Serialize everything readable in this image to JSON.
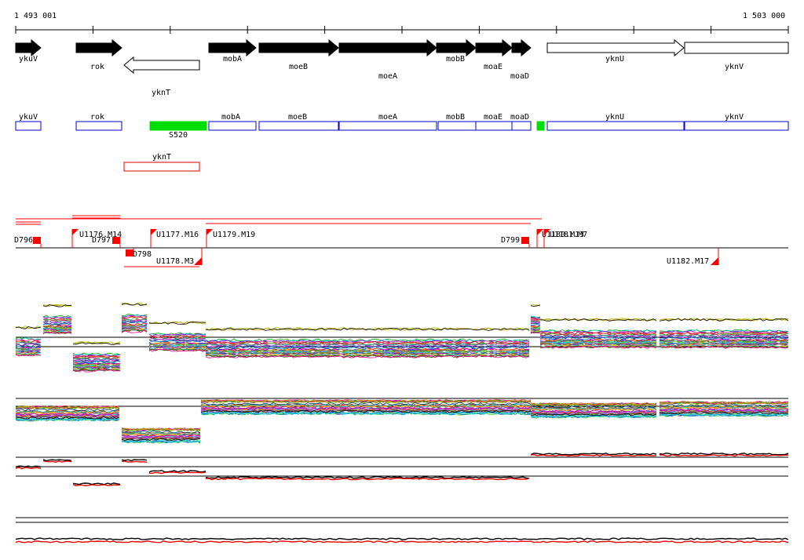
{
  "coordinates": {
    "start_label": "1 493 001",
    "end_label": "1 503 000"
  },
  "colors": {
    "gene_fill": "#000000",
    "gene_outline": "#000000",
    "box_blue": "#0000cc",
    "box_red": "#dd0000",
    "box_green": "#00dd00",
    "marker_red": "#ff0000",
    "axis": "#000000"
  },
  "gene_track": {
    "genes": [
      {
        "name": "ykuV",
        "strand": "+",
        "filled": true
      },
      {
        "name": "rok",
        "strand": "+",
        "filled": true
      },
      {
        "name": "yknT",
        "strand": "-",
        "filled": false
      },
      {
        "name": "mobA",
        "strand": "+",
        "filled": true
      },
      {
        "name": "moeB",
        "strand": "+",
        "filled": true
      },
      {
        "name": "moeA",
        "strand": "+",
        "filled": true
      },
      {
        "name": "mobB",
        "strand": "+",
        "filled": true
      },
      {
        "name": "moaE",
        "strand": "+",
        "filled": true
      },
      {
        "name": "moaD",
        "strand": "+",
        "filled": true
      },
      {
        "name": "yknU",
        "strand": "+",
        "filled": false
      },
      {
        "name": "yknV",
        "strand": "+",
        "filled": false
      }
    ]
  },
  "annotation_track": {
    "boxes": [
      {
        "label": "ykuV",
        "color": "blue"
      },
      {
        "label": "rok",
        "color": "blue"
      },
      {
        "label": "S520",
        "color": "green"
      },
      {
        "label": "mobA",
        "color": "blue"
      },
      {
        "label": "moeB",
        "color": "blue"
      },
      {
        "label": "moeA",
        "color": "blue"
      },
      {
        "label": "mobB",
        "color": "blue"
      },
      {
        "label": "moaE",
        "color": "blue"
      },
      {
        "label": "moaD",
        "color": "blue"
      },
      {
        "label": "",
        "color": "green"
      },
      {
        "label": "yknU",
        "color": "blue"
      },
      {
        "label": "yknV",
        "color": "blue"
      },
      {
        "label": "yknT",
        "color": "red"
      }
    ]
  },
  "transcription_track": {
    "markers": [
      {
        "label": "D796",
        "type": "downshift"
      },
      {
        "label": "U1176.M14",
        "type": "upshift"
      },
      {
        "label": "D797",
        "type": "downshift"
      },
      {
        "label": "D798",
        "type": "downshift"
      },
      {
        "label": "U1177.M16",
        "type": "upshift"
      },
      {
        "label": "U1178.M3",
        "type": "upshift"
      },
      {
        "label": "U1179.M19",
        "type": "upshift"
      },
      {
        "label": "D799",
        "type": "downshift"
      },
      {
        "label": "U1180.M13",
        "type": "upshift"
      },
      {
        "label": "U1181.M7",
        "type": "upshift"
      },
      {
        "label": "U1182.M17",
        "type": "upshift"
      }
    ]
  },
  "expression_panels": [
    {
      "id": "forward-strand-tiling",
      "series_count": 40,
      "palette": "multicolor"
    },
    {
      "id": "reverse-strand-tiling",
      "series_count": 40,
      "palette": "multicolor"
    },
    {
      "id": "forward-strand-summary",
      "series_count": 2,
      "palette": "black-red"
    },
    {
      "id": "reverse-strand-summary",
      "series_count": 2,
      "palette": "black-red"
    }
  ]
}
